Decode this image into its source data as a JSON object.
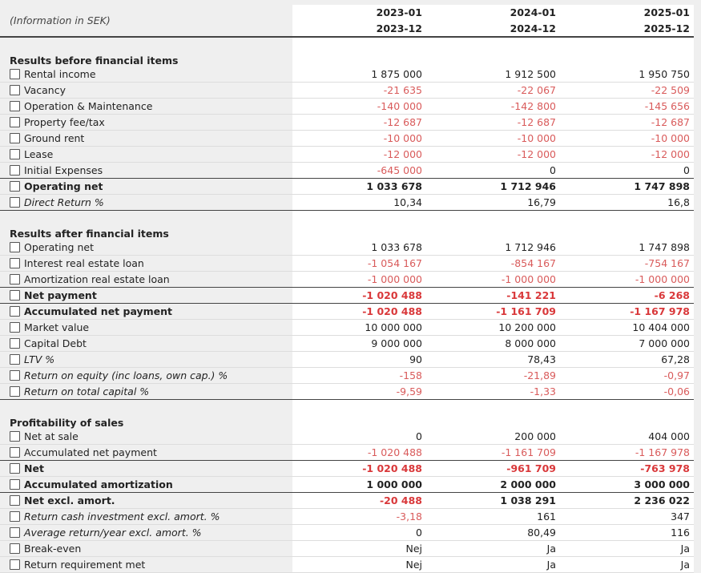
{
  "header": {
    "info_label": "(Information in SEK)",
    "periods": [
      {
        "from": "2023-01",
        "to": "2023-12"
      },
      {
        "from": "2024-01",
        "to": "2024-12"
      },
      {
        "from": "2025-01",
        "to": "2025-12"
      }
    ]
  },
  "sections": [
    {
      "title": "Results before financial items",
      "rows": [
        {
          "label": "Rental income",
          "values": [
            "1 875 000",
            "1 912 500",
            "1 950 750"
          ],
          "style": "normal"
        },
        {
          "label": "Vacancy",
          "values": [
            "-21 635",
            "-22 067",
            "-22 509"
          ],
          "style": "normal"
        },
        {
          "label": "Operation & Maintenance",
          "values": [
            "-140 000",
            "-142 800",
            "-145 656"
          ],
          "style": "normal"
        },
        {
          "label": "Property fee/tax",
          "values": [
            "-12 687",
            "-12 687",
            "-12 687"
          ],
          "style": "normal"
        },
        {
          "label": "Ground rent",
          "values": [
            "-10 000",
            "-10 000",
            "-10 000"
          ],
          "style": "normal"
        },
        {
          "label": "Lease",
          "values": [
            "-12 000",
            "-12 000",
            "-12 000"
          ],
          "style": "normal"
        },
        {
          "label": "Initial Expenses",
          "values": [
            "-645 000",
            "0",
            "0"
          ],
          "style": "normal",
          "underline": true
        },
        {
          "label": "Operating net",
          "values": [
            "1 033 678",
            "1 712 946",
            "1 747 898"
          ],
          "style": "bold"
        },
        {
          "label": "Direct Return %",
          "values": [
            "10,34",
            "16,79",
            "16,8"
          ],
          "style": "italic",
          "underline": true
        }
      ]
    },
    {
      "title": "Results after financial items",
      "rows": [
        {
          "label": "Operating net",
          "values": [
            "1 033 678",
            "1 712 946",
            "1 747 898"
          ],
          "style": "normal"
        },
        {
          "label": "Interest real estate loan",
          "values": [
            "-1 054 167",
            "-854 167",
            "-754 167"
          ],
          "style": "normal"
        },
        {
          "label": "Amortization real estate loan",
          "values": [
            "-1 000 000",
            "-1 000 000",
            "-1 000 000"
          ],
          "style": "normal",
          "underline": true
        },
        {
          "label": "Net payment",
          "values": [
            "-1 020 488",
            "-141 221",
            "-6 268"
          ],
          "style": "bold",
          "underline": true
        },
        {
          "label": "Accumulated net payment",
          "values": [
            "-1 020 488",
            "-1 161 709",
            "-1 167 978"
          ],
          "style": "bold"
        },
        {
          "label": "Market value",
          "values": [
            "10 000 000",
            "10 200 000",
            "10 404 000"
          ],
          "style": "normal"
        },
        {
          "label": "Capital Debt",
          "values": [
            "9 000 000",
            "8 000 000",
            "7 000 000"
          ],
          "style": "normal"
        },
        {
          "label": "LTV %",
          "values": [
            "90",
            "78,43",
            "67,28"
          ],
          "style": "italic"
        },
        {
          "label": "Return on equity (inc loans, own cap.) %",
          "values": [
            "-158",
            "-21,89",
            "-0,97"
          ],
          "style": "italic"
        },
        {
          "label": "Return on total capital %",
          "values": [
            "-9,59",
            "-1,33",
            "-0,06"
          ],
          "style": "italic",
          "underline": true
        }
      ]
    },
    {
      "title": "Profitability of sales",
      "rows": [
        {
          "label": "Net at sale",
          "values": [
            "0",
            "200 000",
            "404 000"
          ],
          "style": "normal"
        },
        {
          "label": "Accumulated net payment",
          "values": [
            "-1 020 488",
            "-1 161 709",
            "-1 167 978"
          ],
          "style": "normal",
          "underline": true
        },
        {
          "label": "Net",
          "values": [
            "-1 020 488",
            "-961 709",
            "-763 978"
          ],
          "style": "bold"
        },
        {
          "label": "Accumulated amortization",
          "values": [
            "1 000 000",
            "2 000 000",
            "3 000 000"
          ],
          "style": "bold",
          "underline": true
        },
        {
          "label": "Net excl. amort.",
          "values": [
            "-20 488",
            "1 038 291",
            "2 236 022"
          ],
          "style": "bold"
        },
        {
          "label": "Return cash investment excl. amort. %",
          "values": [
            "-3,18",
            "161",
            "347"
          ],
          "style": "italic"
        },
        {
          "label": "Average return/year excl. amort. %",
          "values": [
            "0",
            "80,49",
            "116"
          ],
          "style": "italic"
        },
        {
          "label": "Break-even",
          "values": [
            "Nej",
            "Ja",
            "Ja"
          ],
          "style": "normal"
        },
        {
          "label": "Return requirement met",
          "values": [
            "Nej",
            "Ja",
            "Ja"
          ],
          "style": "normal"
        }
      ]
    }
  ],
  "colors": {
    "negative": "#d95b5b",
    "negative_bold": "#d9383a",
    "background": "#efefef"
  }
}
